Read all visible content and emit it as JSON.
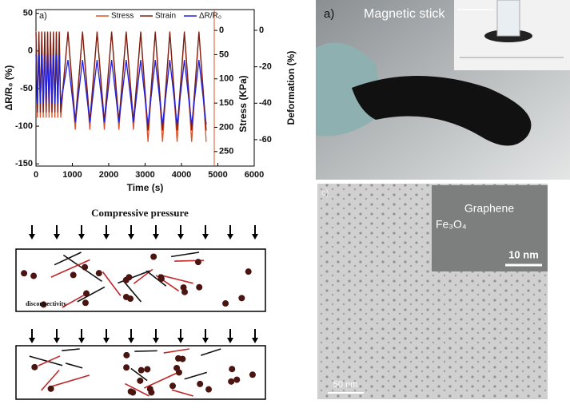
{
  "chart_data": {
    "type": "line",
    "annotations": [
      "a)"
    ],
    "x_label": "Time (s)",
    "y_label": "ΔR/R₀ (%)",
    "y2_label": "Stress (KPa)",
    "y3_label": "Deformation (%)",
    "x": [
      0,
      40,
      80,
      120,
      160,
      200,
      240,
      280,
      320,
      360,
      400,
      440,
      480,
      520,
      560,
      600,
      640,
      680,
      880,
      1080,
      1280,
      1480,
      1680,
      1880,
      2080,
      2280,
      2480,
      2680,
      2880,
      3080,
      3280,
      3480,
      3680,
      3880,
      4080,
      4280,
      4480,
      4680
    ],
    "series": [
      {
        "name": "Stress",
        "color": "#d9542b",
        "axis": "y2",
        "values": [
          2,
          180,
          2,
          180,
          2,
          180,
          2,
          180,
          2,
          180,
          2,
          180,
          2,
          180,
          2,
          180,
          2,
          180,
          2,
          205,
          2,
          205,
          2,
          205,
          2,
          205,
          2,
          205,
          2,
          230,
          2,
          230,
          2,
          230,
          2,
          230,
          2,
          230
        ]
      },
      {
        "name": "Strain",
        "color": "#7a1f14",
        "axis": "y3",
        "values": [
          -1,
          -45,
          -1,
          -45,
          -1,
          -45,
          -1,
          -45,
          -1,
          -45,
          -1,
          -45,
          -1,
          -45,
          -1,
          -45,
          -1,
          -45,
          -1,
          -50,
          -1,
          -50,
          -1,
          -50,
          -1,
          -50,
          -1,
          -50,
          -1,
          -55,
          -1,
          -55,
          -1,
          -55,
          -1,
          -55,
          -1,
          -55
        ]
      },
      {
        "name": "ΔR/R₀",
        "color": "#2020e0",
        "values": [
          -5,
          -70,
          -5,
          -70,
          -5,
          -70,
          -5,
          -70,
          -5,
          -70,
          -5,
          -70,
          -5,
          -70,
          -5,
          -70,
          -5,
          -70,
          -12,
          -95,
          -12,
          -95,
          -12,
          -95,
          -12,
          -95,
          -12,
          -95,
          -12,
          -98,
          -12,
          -98,
          -12,
          -98,
          -12,
          -98,
          -12,
          -98
        ]
      }
    ],
    "xlim": [
      0,
      6000
    ],
    "xticks": [
      0,
      1000,
      2000,
      3000,
      4000,
      5000,
      6000
    ],
    "ylim": [
      -153,
      55
    ],
    "yticks": [
      -150,
      -100,
      -50,
      0,
      50
    ],
    "y2lim": [
      280,
      -43
    ],
    "y2ticks": [
      0,
      50,
      100,
      150,
      200,
      250
    ],
    "y3lim": [
      -74.5,
      11.4
    ],
    "y3ticks": [
      0,
      -20,
      -40,
      -60
    ],
    "legend": "upper right",
    "grid": false
  },
  "diagram": {
    "title": "Compressive pressure",
    "note": "disconnectivity"
  },
  "photo": {
    "label": "a)",
    "caption": "Magnetic stick"
  },
  "micrograph": {
    "label": "c)",
    "graphene": "Graphene",
    "particle": "Fe₃O₄",
    "inset_scale": "10 nm",
    "scale": "50 nm"
  }
}
